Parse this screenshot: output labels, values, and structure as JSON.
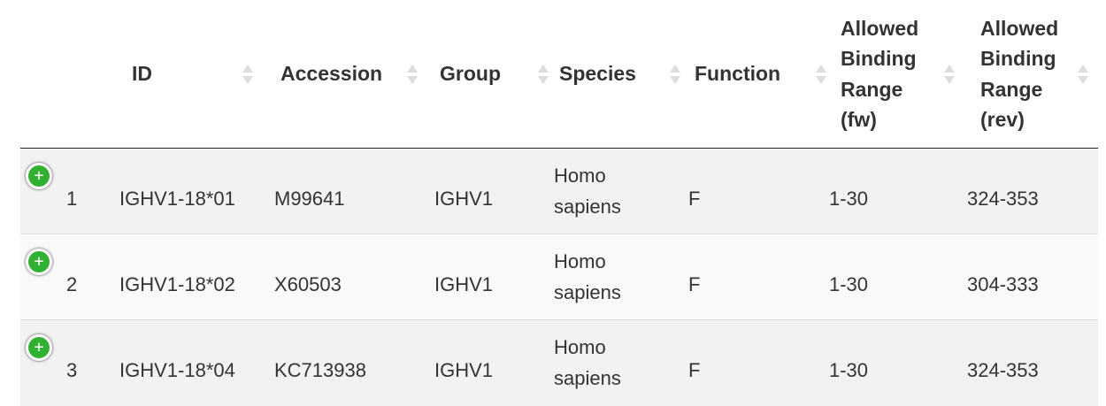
{
  "table": {
    "columns": [
      {
        "key": "index",
        "label": ""
      },
      {
        "key": "id",
        "label": "ID"
      },
      {
        "key": "accession",
        "label": "Accession"
      },
      {
        "key": "group",
        "label": "Group"
      },
      {
        "key": "species",
        "label": "Species"
      },
      {
        "key": "function",
        "label": "Function"
      },
      {
        "key": "fw",
        "label": "Allowed Binding Range (fw)"
      },
      {
        "key": "rev",
        "label": "Allowed Binding Range (rev)"
      }
    ],
    "rows": [
      {
        "index": "1",
        "id": "IGHV1-18*01",
        "accession": "M99641",
        "group": "IGHV1",
        "species": "Homo sapiens",
        "function": "F",
        "fw": "1-30",
        "rev": "324-353"
      },
      {
        "index": "2",
        "id": "IGHV1-18*02",
        "accession": "X60503",
        "group": "IGHV1",
        "species": "Homo sapiens",
        "function": "F",
        "fw": "1-30",
        "rev": "304-333"
      },
      {
        "index": "3",
        "id": "IGHV1-18*04",
        "accession": "KC713938",
        "group": "IGHV1",
        "species": "Homo sapiens",
        "function": "F",
        "fw": "1-30",
        "rev": "324-353"
      }
    ]
  },
  "icons": {
    "expand": "plus-circle-icon",
    "sort": "sort-both-icon",
    "expand_glyph": "+"
  },
  "colors": {
    "expand_green": "#31b131",
    "header_border": "#222222",
    "row_odd": "#f2f2f2",
    "row_even": "#f9f9f9"
  }
}
